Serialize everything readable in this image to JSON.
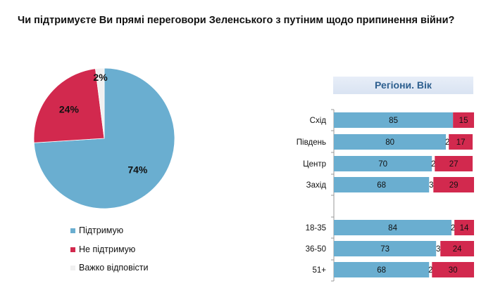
{
  "title": "Чи підтримуєте Ви прямі переговори Зеленського з путіним щодо припинення війни?",
  "colors": {
    "support": "#6aaed0",
    "oppose": "#d2294e",
    "unsure": "#f0f0f0"
  },
  "chart_data": [
    {
      "type": "pie",
      "title": "",
      "slices": [
        {
          "label": "Підтримую",
          "value": 74,
          "data_label": "74%"
        },
        {
          "label": "Не підтримую",
          "value": 24,
          "data_label": "24%"
        },
        {
          "label": "Важко відповісти",
          "value": 2,
          "data_label": "2%"
        }
      ],
      "legend": "bottom"
    },
    {
      "type": "bar",
      "orientation": "horizontal",
      "stacked": true,
      "title": "Регіони. Вік",
      "categories": [
        "Схід",
        "Південь",
        "Центр",
        "Захід",
        "18-35",
        "36-50",
        "51+"
      ],
      "series": [
        {
          "name": "Підтримую",
          "values": [
            85,
            80,
            70,
            68,
            84,
            73,
            68
          ]
        },
        {
          "name": "Важко відповісти",
          "values": [
            0,
            2,
            2,
            3,
            2,
            3,
            2
          ]
        },
        {
          "name": "Не підтримую",
          "values": [
            15,
            17,
            27,
            29,
            14,
            24,
            30
          ]
        }
      ],
      "xlim": [
        0,
        100
      ]
    }
  ]
}
